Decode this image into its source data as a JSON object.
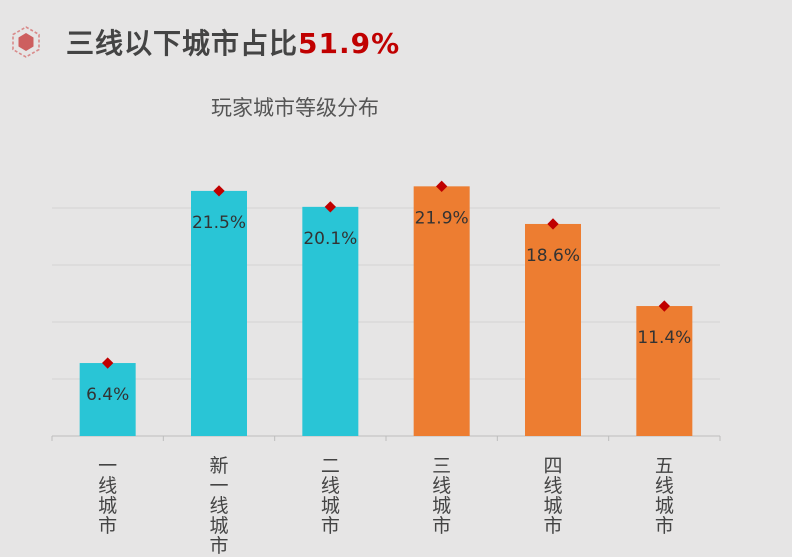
{
  "header": {
    "icon": "hexagon-icon",
    "title": "三线以下城市占比",
    "highlight": "51.9%",
    "highlight_color": "#c00000"
  },
  "chart_data": {
    "type": "bar",
    "title": "玩家城市等级分布",
    "categories": [
      "一线城市",
      "新一线城市",
      "二线城市",
      "三线城市",
      "四线城市",
      "五线城市"
    ],
    "values": [
      6.4,
      21.5,
      20.1,
      21.9,
      18.6,
      11.4
    ],
    "value_labels": [
      "6.4%",
      "21.5%",
      "20.1%",
      "21.9%",
      "18.6%",
      "11.4%"
    ],
    "unit": "%",
    "ylim": [
      0,
      25
    ],
    "grid": true,
    "colors": [
      "#29c5d6",
      "#29c5d6",
      "#29c5d6",
      "#ed7d31",
      "#ed7d31",
      "#ed7d31"
    ],
    "marker_color": "#c00000"
  }
}
